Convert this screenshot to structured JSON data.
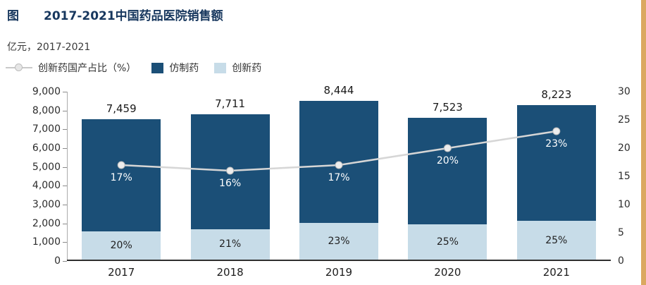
{
  "header": {
    "figure_tag": "图",
    "title": "2017-2021中国药品医院销售额",
    "unit_label": "亿元，2017-2021"
  },
  "legend": {
    "line_label": "创新药国产占比（%）",
    "generic_label": "仿制药",
    "innovative_label": "创新药"
  },
  "colors": {
    "title_text": "#17375E",
    "generic_bar": "#1B4F77",
    "innovative_bar": "#C7DCE8",
    "trend_line": "#D6D6D6",
    "trend_marker_fill": "#EDEDED",
    "trend_marker_stroke": "#BDBDBD",
    "edge_strip": "#DBA860"
  },
  "chart_data": {
    "type": "bar",
    "subtype": "stacked-bars-with-line",
    "title": "2017-2021中国药品医院销售额",
    "unit": "亿元",
    "categories": [
      "2017",
      "2018",
      "2019",
      "2020",
      "2021"
    ],
    "series": [
      {
        "name": "创新药",
        "type": "bar",
        "stack": "total",
        "color": "#C7DCE8",
        "values": [
          1492,
          1619,
          1942,
          1881,
          2056
        ],
        "share_labels": [
          "20%",
          "21%",
          "23%",
          "25%",
          "25%"
        ]
      },
      {
        "name": "仿制药",
        "type": "bar",
        "stack": "total",
        "color": "#1B4F77",
        "values": [
          5967,
          6092,
          6502,
          5642,
          6167
        ]
      },
      {
        "name": "创新药国产占比（%）",
        "type": "line",
        "axis": "right",
        "color": "#D6D6D6",
        "values": [
          17,
          16,
          17,
          20,
          23
        ],
        "point_labels": [
          "17%",
          "16%",
          "17%",
          "20%",
          "23%"
        ]
      }
    ],
    "totals": [
      7459,
      7711,
      8444,
      7523,
      8223
    ],
    "total_labels": [
      "7,459",
      "7,711",
      "8,444",
      "7,523",
      "8,223"
    ],
    "left_axis": {
      "min": 0,
      "max": 9000,
      "step": 1000,
      "labels": [
        "0",
        "1,000",
        "2,000",
        "3,000",
        "4,000",
        "5,000",
        "6,000",
        "7,000",
        "8,000",
        "9,000"
      ]
    },
    "right_axis": {
      "min": 0,
      "max": 30,
      "step": 5,
      "labels": [
        "0",
        "5",
        "10",
        "15",
        "20",
        "25",
        "30"
      ]
    },
    "grid": false,
    "legend_position": "top-left"
  }
}
